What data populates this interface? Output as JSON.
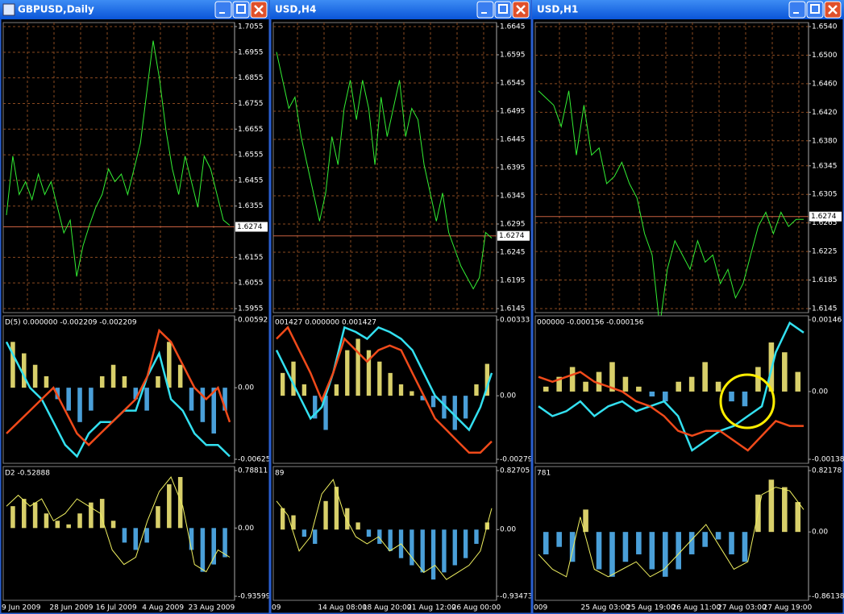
{
  "windows": [
    {
      "title": "GBPUSD,Daily",
      "price_label": 1.6274,
      "dates": [
        "9 Jun 2009",
        "28 Jun 2009",
        "16 Jul 2009",
        "4 Aug 2009",
        "23 Aug 2009"
      ],
      "panels": [
        {
          "type": "line",
          "color": "#33ee33",
          "grid": true,
          "ylim": [
            1.5955,
            1.7055
          ],
          "yticks": [
            1.7055,
            1.6955,
            1.6855,
            1.6755,
            1.6655,
            1.6555,
            1.6455,
            1.6355,
            1.6155,
            1.6055,
            1.5955
          ],
          "values": [
            1.632,
            1.655,
            1.64,
            1.645,
            1.638,
            1.648,
            1.64,
            1.645,
            1.635,
            1.625,
            1.63,
            1.608,
            1.62,
            1.628,
            1.635,
            1.64,
            1.65,
            1.645,
            1.648,
            1.64,
            1.65,
            1.66,
            1.68,
            1.7,
            1.685,
            1.665,
            1.65,
            1.64,
            1.655,
            1.645,
            1.635,
            1.655,
            1.65,
            1.64,
            1.63,
            1.628
          ]
        },
        {
          "type": "indicator",
          "label": "D(5) 0.000000 -0.002209 -0.002209",
          "ylim": [
            -0.00625,
            0.00592
          ],
          "yticks": [
            0.00592,
            {
              "value": 0,
              "label": "0.00"
            },
            -0.00625
          ],
          "hist_colors": [
            "#d8cf6a",
            "#4a9fd8"
          ],
          "histogram": [
            0.004,
            0.003,
            0.002,
            0.001,
            -0.001,
            -0.002,
            -0.003,
            -0.002,
            0.001,
            0.002,
            0.001,
            -0.001,
            -0.002,
            0.001,
            0.004,
            0.002,
            -0.002,
            -0.003,
            -0.004,
            -0.002
          ],
          "series": [
            {
              "color": "#33e0f0",
              "values": [
                0.004,
                0.002,
                0,
                -0.001,
                -0.003,
                -0.005,
                -0.006,
                -0.004,
                -0.003,
                -0.003,
                -0.002,
                -0.002,
                0.001,
                0.003,
                -0.001,
                -0.002,
                -0.004,
                -0.005,
                -0.005,
                -0.006
              ]
            },
            {
              "color": "#f04a1a",
              "values": [
                -0.004,
                -0.003,
                -0.002,
                -0.001,
                0,
                -0.002,
                -0.004,
                -0.005,
                -0.004,
                -0.003,
                -0.002,
                -0.001,
                0.001,
                0.005,
                0.004,
                0.002,
                0,
                -0.001,
                0,
                -0.003
              ]
            }
          ]
        },
        {
          "type": "indicator",
          "label": "D2 -0.52888",
          "ylim": [
            -0.93599,
            0.78811
          ],
          "yticks": [
            0.78811,
            {
              "value": 0,
              "label": "0.00"
            },
            -0.93599
          ],
          "hist_colors": [
            "#d8cf6a",
            "#4a9fd8"
          ],
          "histogram": [
            0.3,
            0.4,
            0.35,
            0.2,
            0.1,
            0.05,
            0.2,
            0.35,
            0.4,
            0.1,
            -0.2,
            -0.3,
            -0.2,
            0.3,
            0.6,
            0.7,
            -0.3,
            -0.6,
            -0.5,
            -0.4
          ],
          "series": [
            {
              "color": "#f0f060",
              "values": [
                0.3,
                0.45,
                0.3,
                0.4,
                0.1,
                0.2,
                0.4,
                0.3,
                0.2,
                -0.3,
                -0.5,
                -0.4,
                0.1,
                0.5,
                0.7,
                0.3,
                -0.5,
                -0.6,
                -0.3,
                -0.4
              ]
            }
          ]
        }
      ]
    },
    {
      "title": "USD,H4",
      "price_label": 1.6274,
      "dates": [
        "09",
        "14 Aug 08:00",
        "18 Aug 20:00",
        "21 Aug 12:00",
        "26 Aug 00:00"
      ],
      "panels": [
        {
          "type": "line",
          "color": "#33ee33",
          "grid": true,
          "ylim": [
            1.6145,
            1.6645
          ],
          "yticks": [
            1.6645,
            1.6595,
            1.6545,
            1.6495,
            1.6445,
            1.6395,
            1.6345,
            1.6295,
            1.6245,
            1.6195,
            1.6145
          ],
          "values": [
            1.66,
            1.655,
            1.65,
            1.652,
            1.645,
            1.64,
            1.635,
            1.63,
            1.635,
            1.645,
            1.64,
            1.65,
            1.655,
            1.648,
            1.655,
            1.65,
            1.64,
            1.652,
            1.645,
            1.65,
            1.655,
            1.645,
            1.65,
            1.648,
            1.64,
            1.635,
            1.63,
            1.635,
            1.628,
            1.625,
            1.622,
            1.62,
            1.618,
            1.62,
            1.628,
            1.627
          ]
        },
        {
          "type": "indicator",
          "label": "001427 0.000000 0.001427",
          "ylim": [
            -0.00279,
            0.00333
          ],
          "yticks": [
            0.00333,
            {
              "value": 0,
              "label": "0.00"
            },
            -0.00279
          ],
          "hist_colors": [
            "#d8cf6a",
            "#4a9fd8"
          ],
          "histogram": [
            0.001,
            0.0015,
            0.0005,
            -0.001,
            -0.0015,
            0.0005,
            0.002,
            0.0025,
            0.002,
            0.0015,
            0.001,
            0.0005,
            0.0002,
            -0.0002,
            -0.0005,
            -0.001,
            -0.0015,
            -0.001,
            0.0005,
            0.0014
          ],
          "series": [
            {
              "color": "#33e0f0",
              "values": [
                0.002,
                0.001,
                0,
                -0.001,
                -0.0005,
                0.001,
                0.003,
                0.0028,
                0.0025,
                0.003,
                0.0028,
                0.0025,
                0.002,
                0.001,
                0,
                -0.0005,
                -0.001,
                -0.0015,
                -0.0005,
                0.001
              ]
            },
            {
              "color": "#f04a1a",
              "values": [
                0.0025,
                0.003,
                0.002,
                0.001,
                -0.0002,
                0.001,
                0.0025,
                0.002,
                0.0015,
                0.002,
                0.0022,
                0.002,
                0.001,
                0,
                -0.001,
                -0.0015,
                -0.002,
                -0.0025,
                -0.0025,
                -0.002
              ]
            }
          ]
        },
        {
          "type": "indicator",
          "label": "89",
          "ylim": [
            -0.93473,
            0.82705
          ],
          "yticks": [
            0.82705,
            {
              "value": 0,
              "label": "0.00"
            },
            -0.93473
          ],
          "hist_colors": [
            "#d8cf6a",
            "#4a9fd8"
          ],
          "histogram": [
            0.3,
            0.2,
            -0.1,
            -0.2,
            0.4,
            0.6,
            0.3,
            0.1,
            -0.1,
            -0.2,
            -0.3,
            -0.4,
            -0.5,
            -0.6,
            -0.7,
            -0.6,
            -0.5,
            -0.4,
            -0.2,
            0.1
          ],
          "series": [
            {
              "color": "#f0f060",
              "values": [
                0.4,
                0.2,
                -0.3,
                -0.1,
                0.5,
                0.7,
                0.2,
                -0.1,
                -0.2,
                -0.1,
                -0.3,
                -0.2,
                -0.4,
                -0.6,
                -0.5,
                -0.7,
                -0.6,
                -0.5,
                -0.3,
                0.3
              ]
            }
          ]
        }
      ]
    },
    {
      "title": "USD,H1",
      "price_label": 1.6274,
      "dates": [
        "009",
        "25 Aug 03:00",
        "25 Aug 19:00",
        "26 Aug 11:00",
        "27 Aug 03:00",
        "27 Aug 19:00"
      ],
      "panels": [
        {
          "type": "line",
          "color": "#33ee33",
          "grid": true,
          "ylim": [
            1.6145,
            1.654
          ],
          "yticks": [
            {
              "value": 1.654,
              "label": "1.6540"
            },
            {
              "value": 1.65,
              "label": "1.6500"
            },
            {
              "value": 1.646,
              "label": "1.6460"
            },
            {
              "value": 1.642,
              "label": "1.6420"
            },
            {
              "value": 1.638,
              "label": "1.6380"
            },
            1.6345,
            1.6305,
            1.6265,
            1.6225,
            1.6185,
            1.6145
          ],
          "values": [
            1.645,
            1.644,
            1.643,
            1.64,
            1.645,
            1.636,
            1.643,
            1.636,
            1.637,
            1.632,
            1.633,
            1.635,
            1.632,
            1.63,
            1.625,
            1.622,
            1.612,
            1.62,
            1.624,
            1.622,
            1.62,
            1.624,
            1.621,
            1.622,
            1.618,
            1.62,
            1.616,
            1.618,
            1.622,
            1.626,
            1.628,
            1.625,
            1.628,
            1.626,
            1.627,
            1.627
          ]
        },
        {
          "type": "indicator",
          "label": "000000 -0.000156 -0.000156",
          "ylim": [
            -0.00138,
            0.00146
          ],
          "yticks": [
            0.00146,
            {
              "value": 0,
              "label": "0.00"
            },
            -0.00138
          ],
          "hist_colors": [
            "#d8cf6a",
            "#4a9fd8"
          ],
          "histogram": [
            0.0001,
            0.0003,
            0.0005,
            0.0002,
            0.0004,
            0.0006,
            0.0003,
            0.0001,
            -0.0001,
            -0.0002,
            0.0002,
            0.0003,
            0.0006,
            0.0002,
            -0.0002,
            -0.0003,
            0.0005,
            0.001,
            0.0008,
            0.0004
          ],
          "series": [
            {
              "color": "#33e0f0",
              "values": [
                -0.0003,
                -0.0005,
                -0.0004,
                -0.0002,
                -0.0005,
                -0.0003,
                -0.0002,
                -0.0004,
                -0.0003,
                -0.0002,
                -0.0005,
                -0.0012,
                -0.001,
                -0.0008,
                -0.0007,
                -0.0005,
                -0.0003,
                0.0008,
                0.0014,
                0.0012
              ]
            },
            {
              "color": "#f04a1a",
              "values": [
                0.0003,
                0.0002,
                0.0003,
                0.0004,
                0.0002,
                0.0001,
                0,
                -0.0002,
                -0.0003,
                -0.0005,
                -0.0008,
                -0.0009,
                -0.0008,
                -0.0008,
                -0.001,
                -0.0012,
                -0.0009,
                -0.0006,
                -0.0007,
                -0.0007
              ]
            }
          ]
        },
        {
          "type": "indicator",
          "label": "781",
          "ylim": [
            -0.86138,
            0.82178
          ],
          "yticks": [
            0.82178,
            {
              "value": 0,
              "label": "0.00"
            },
            -0.86138
          ],
          "hist_colors": [
            "#d8cf6a",
            "#4a9fd8"
          ],
          "histogram": [
            -0.3,
            -0.2,
            -0.4,
            0.3,
            -0.5,
            -0.6,
            -0.4,
            -0.3,
            -0.5,
            -0.6,
            -0.5,
            -0.3,
            -0.2,
            -0.1,
            -0.3,
            -0.4,
            0.5,
            0.7,
            0.6,
            0.4
          ],
          "series": [
            {
              "color": "#f0f060",
              "values": [
                -0.3,
                -0.5,
                -0.6,
                0.2,
                -0.5,
                -0.6,
                -0.5,
                -0.4,
                -0.6,
                -0.5,
                -0.3,
                -0.1,
                0.1,
                -0.2,
                -0.5,
                -0.4,
                0.5,
                0.6,
                0.55,
                0.3
              ]
            }
          ]
        }
      ]
    }
  ]
}
